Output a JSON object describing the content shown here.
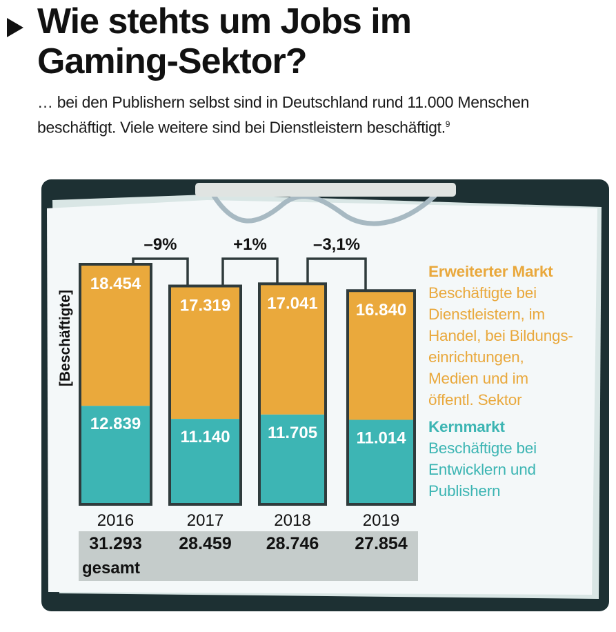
{
  "header": {
    "title": "Wie stehts um Jobs im\nGaming-Sektor?",
    "title_line1": "Wie stehts um Jobs im",
    "title_line2": "Gaming-Sektor?",
    "subtitle_line1": "… bei den Publishern selbst sind in Deutschland rund 11.000 Menschen",
    "subtitle_line2": "beschäftigt. Viele weitere sind bei Dienstleistern beschäftigt.",
    "footnote_marker": "9"
  },
  "colors": {
    "extended_market": "#eaa93c",
    "core_market": "#3db5b4",
    "clipboard_frame": "#1d3033",
    "paper": "#f4f8f9",
    "totals_band": "#c5cccb",
    "bar_outline": "#2f3b3c"
  },
  "legend": {
    "extended_title": "Erweiterter Markt",
    "extended_desc": "Beschäftigte bei\nDienstleistern, im\nHandel, bei Bildungs-\neinrichtungen,\nMedien und im\nöffentl. Sektor",
    "core_title": "Kernmarkt",
    "core_desc": "Beschäftigte bei\nEntwicklern und\nPublishern"
  },
  "chart_data": {
    "type": "bar",
    "stacked": true,
    "title": "Wie stehts um Jobs im Gaming-Sektor?",
    "ylabel": "[Beschäftigte]",
    "xlabel": "",
    "categories": [
      "2016",
      "2017",
      "2018",
      "2019"
    ],
    "series": [
      {
        "name": "Kernmarkt",
        "values": [
          12839,
          11140,
          11705,
          11014
        ],
        "labels": [
          "12.839",
          "11.140",
          "11.705",
          "11.014"
        ]
      },
      {
        "name": "Erweiterter Markt",
        "values": [
          18454,
          17319,
          17041,
          16840
        ],
        "labels": [
          "18.454",
          "17.319",
          "17.041",
          "16.840"
        ]
      }
    ],
    "totals": [
      31293,
      28459,
      28746,
      27854
    ],
    "total_labels": [
      "31.293",
      "28.459",
      "28.746",
      "27.854"
    ],
    "total_caption": "gesamt",
    "changes": [
      "–9%",
      "+1%",
      "–3,1%"
    ],
    "ylim": [
      0,
      31293
    ],
    "grid": false,
    "legend_position": "right"
  }
}
